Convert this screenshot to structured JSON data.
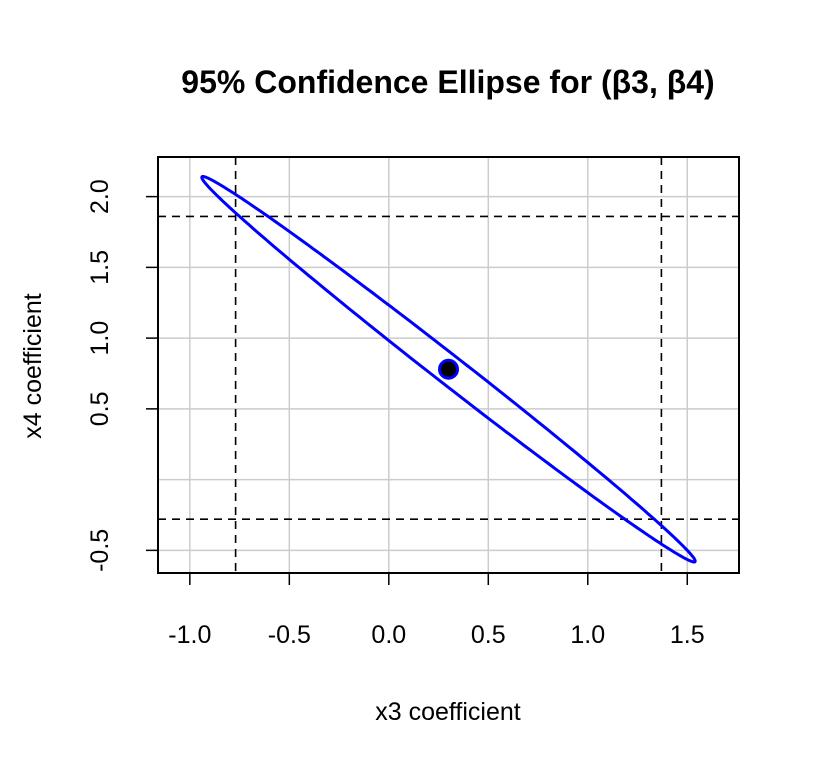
{
  "chart_data": {
    "type": "scatter",
    "title": "95% Confidence Ellipse for (β3, β4)",
    "xlabel": "x3 coefficient",
    "ylabel": "x4 coefficient",
    "xlim": [
      -1.16,
      1.76
    ],
    "ylim": [
      -0.66,
      2.28
    ],
    "x_ticks": [
      -1.0,
      -0.5,
      0.0,
      0.5,
      1.0,
      1.5
    ],
    "x_tick_labels": [
      "-1.0",
      "-0.5",
      "0.0",
      "0.5",
      "1.0",
      "1.5"
    ],
    "y_ticks": [
      -0.5,
      0.5,
      1.0,
      1.5,
      2.0
    ],
    "y_tick_labels": [
      "-0.5",
      "0.5",
      "1.0",
      "1.5",
      "2.0"
    ],
    "grid": true,
    "grid_x": [
      -1.0,
      -0.5,
      0.0,
      0.5,
      1.0,
      1.5
    ],
    "grid_y": [
      -0.5,
      0.0,
      0.5,
      1.0,
      1.5,
      2.0
    ],
    "ellipse": {
      "center": [
        0.3,
        0.78
      ],
      "semi_major": 1.84,
      "semi_minor": 0.087,
      "angle_deg": -47.7,
      "color": "#0000ff"
    },
    "point_estimate": {
      "x": 0.3,
      "y": 0.78,
      "color": "#000000",
      "edge": "#0000ff"
    },
    "reference_lines": {
      "vertical": [
        -0.77,
        1.37
      ],
      "horizontal": [
        1.86,
        -0.28
      ],
      "color": "#000000"
    }
  }
}
